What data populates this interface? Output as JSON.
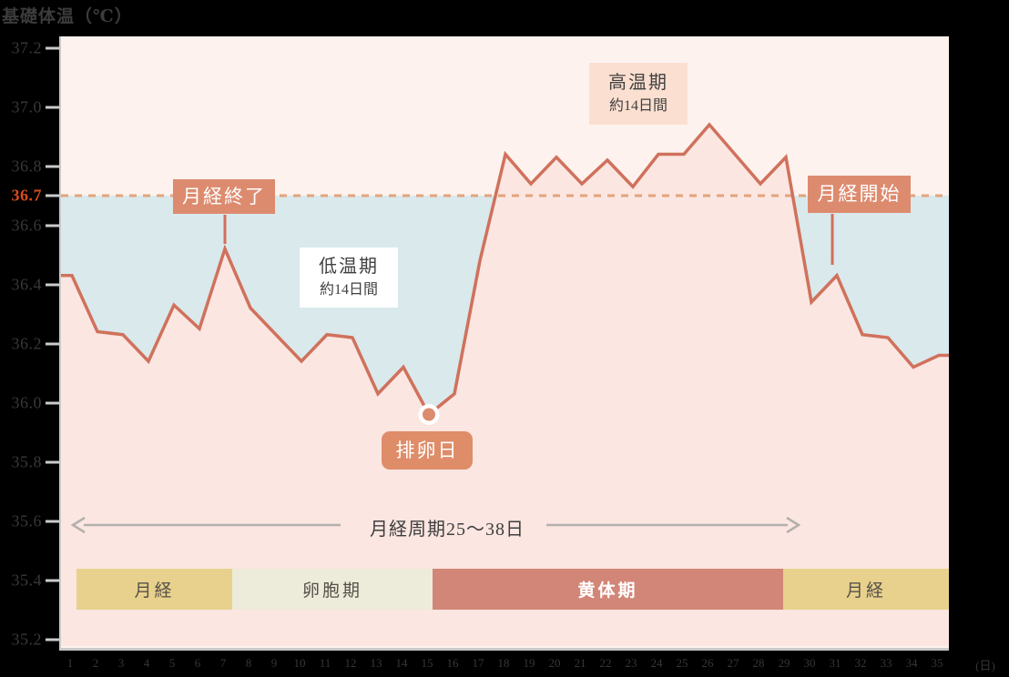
{
  "title": "基礎体温（℃）",
  "chart_data": {
    "type": "line",
    "title": "基礎体温（℃）",
    "xlabel": "(日)",
    "ylabel": "基礎体温（℃）",
    "x": [
      1,
      2,
      3,
      4,
      5,
      6,
      7,
      8,
      9,
      10,
      11,
      12,
      13,
      14,
      15,
      16,
      17,
      18,
      19,
      20,
      21,
      22,
      23,
      24,
      25,
      26,
      27,
      28,
      29,
      30,
      31,
      32,
      33,
      34,
      35
    ],
    "series": [
      {
        "name": "基礎体温",
        "values": [
          36.43,
          36.24,
          36.23,
          36.14,
          36.33,
          36.25,
          36.52,
          36.32,
          36.23,
          36.14,
          36.23,
          36.22,
          36.03,
          36.12,
          35.96,
          36.03,
          36.48,
          36.84,
          36.74,
          36.83,
          36.74,
          36.82,
          36.73,
          36.84,
          36.84,
          36.94,
          36.84,
          36.74,
          36.83,
          36.34,
          36.43,
          36.23,
          36.22,
          36.12,
          36.16
        ]
      }
    ],
    "y_ticks": [
      37.2,
      37.0,
      36.8,
      36.6,
      36.4,
      36.2,
      36.0,
      35.8,
      35.6,
      35.4,
      35.2
    ],
    "ylim": [
      35.1,
      37.25
    ],
    "grid": false,
    "legend": false,
    "reference_line": {
      "value": 36.7,
      "label": "36.7",
      "style": "dashed"
    },
    "key_points": {
      "ovulation_day": 15,
      "menses_end_day": 7,
      "menses_start_day": 31
    }
  },
  "annotations": {
    "menses_end": {
      "label": "月経終了",
      "day": 7
    },
    "menses_start": {
      "label": "月経開始",
      "day": 31
    },
    "ovulation": {
      "label": "排卵日",
      "day": 15
    },
    "low_phase": {
      "line1": "低温期",
      "line2": "約14日間"
    },
    "high_phase": {
      "line1": "高温期",
      "line2": "約14日間"
    },
    "cycle_arrow": {
      "label": "月経周期25〜38日"
    }
  },
  "bands": [
    {
      "label": "月経"
    },
    {
      "label": "卵胞期"
    },
    {
      "label": "黄体期"
    },
    {
      "label": "月経"
    }
  ],
  "x_axis_unit": "(日)",
  "colors": {
    "curve": "#d0715c",
    "dashed_reference": "#e2a47c",
    "below_ref_fill": "#d9e9ec",
    "under_curve_fill": "#fbe6e1",
    "plot_background": "#fdf2ee",
    "callout_background": "#dd8b6f",
    "high_phase_box": "#fbdfd0",
    "band_yellow": "#e8d18c",
    "band_cream": "#edebd9",
    "band_salmon": "#d28677",
    "reference_label": "#d94c1f",
    "axis_gray": "#cbcbcb",
    "arrow_gray": "#b3b0ad",
    "text_dark": "#3c3c3c"
  }
}
